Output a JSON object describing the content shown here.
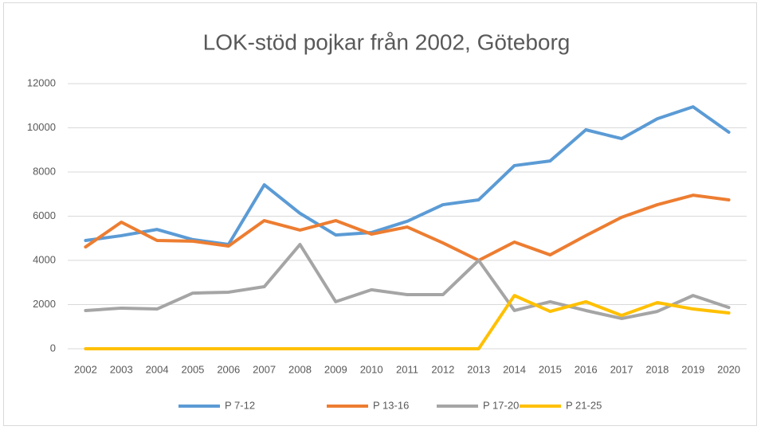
{
  "chart_data": {
    "type": "line",
    "title": "LOK-stöd pojkar från 2002, Göteborg",
    "categories": [
      "2002",
      "2003",
      "2004",
      "2005",
      "2006",
      "2007",
      "2008",
      "2009",
      "2010",
      "2011",
      "2012",
      "2013",
      "2014",
      "2015",
      "2016",
      "2017",
      "2018",
      "2019",
      "2020"
    ],
    "series": [
      {
        "name": "P 7-12",
        "color": "#5b9bd5",
        "values": [
          4900,
          5120,
          5400,
          4940,
          4720,
          7420,
          6130,
          5150,
          5260,
          5770,
          6520,
          6740,
          8290,
          8500,
          9910,
          9510,
          10410,
          10950,
          9800
        ]
      },
      {
        "name": "P 13-16",
        "color": "#ed7d31",
        "values": [
          4610,
          5730,
          4900,
          4870,
          4650,
          5800,
          5370,
          5800,
          5190,
          5510,
          4790,
          4000,
          4830,
          4250,
          5120,
          5950,
          6520,
          6950,
          6740
        ]
      },
      {
        "name": "P 17-20",
        "color": "#a5a5a5",
        "values": [
          1730,
          1840,
          1800,
          2520,
          2560,
          2810,
          4720,
          2130,
          2670,
          2450,
          2450,
          4000,
          1730,
          2130,
          1730,
          1370,
          1690,
          2410,
          1870
        ]
      },
      {
        "name": "P 21-25",
        "color": "#ffc000",
        "values": [
          0,
          0,
          0,
          0,
          0,
          0,
          0,
          0,
          0,
          0,
          0,
          0,
          2410,
          1690,
          2130,
          1510,
          2090,
          1800,
          1620
        ]
      }
    ],
    "ylim": [
      0,
      12000
    ],
    "yticks": [
      0,
      2000,
      4000,
      6000,
      8000,
      10000,
      12000
    ],
    "grid": true,
    "legend": "bottom"
  }
}
